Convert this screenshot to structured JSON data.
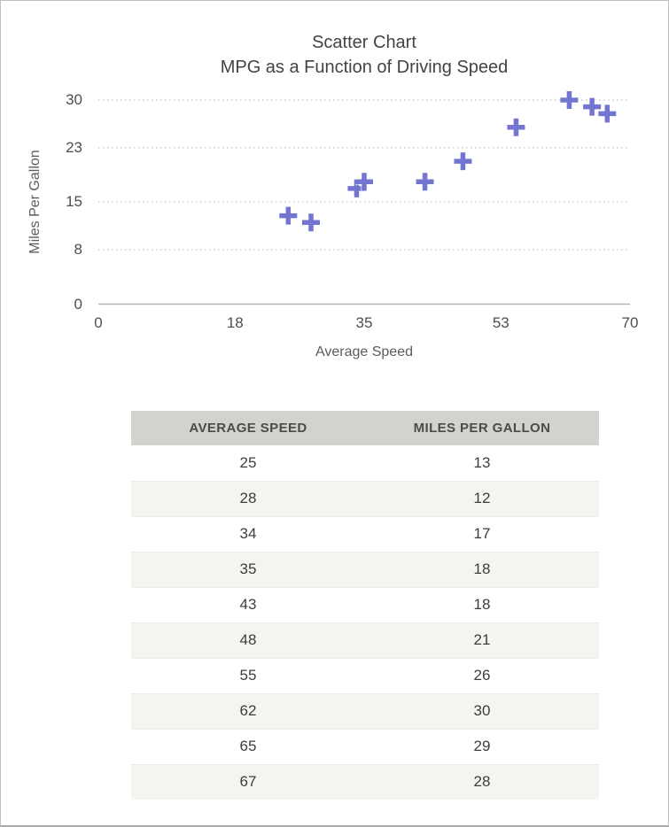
{
  "chart_data": {
    "type": "scatter",
    "title": "Scatter Chart",
    "subtitle": "MPG as a Function of Driving Speed",
    "xlabel": "Average Speed",
    "ylabel": "Miles Per Gallon",
    "x": [
      25,
      28,
      34,
      35,
      43,
      48,
      55,
      62,
      65,
      67
    ],
    "y": [
      13,
      12,
      17,
      18,
      18,
      21,
      26,
      30,
      29,
      28
    ],
    "xlim": [
      0,
      70
    ],
    "ylim": [
      0,
      30
    ],
    "x_ticks": [
      0,
      18,
      35,
      53,
      70
    ],
    "y_ticks": [
      0,
      8,
      15,
      23,
      30
    ],
    "marker": "plus",
    "marker_color": "#7376d0",
    "gridline_color": "#cdcdcd",
    "axis_line_color": "#b5b5b5",
    "grid": "horizontal-dotted",
    "legend": "none"
  },
  "table": {
    "headers": [
      "AVERAGE SPEED",
      "MILES PER GALLON"
    ],
    "rows": [
      [
        25,
        13
      ],
      [
        28,
        12
      ],
      [
        34,
        17
      ],
      [
        35,
        18
      ],
      [
        43,
        18
      ],
      [
        48,
        21
      ],
      [
        55,
        26
      ],
      [
        62,
        30
      ],
      [
        65,
        29
      ],
      [
        67,
        28
      ]
    ],
    "header_bg": "#d3d2ce",
    "alt_row_bg": "#f4f4f1"
  }
}
